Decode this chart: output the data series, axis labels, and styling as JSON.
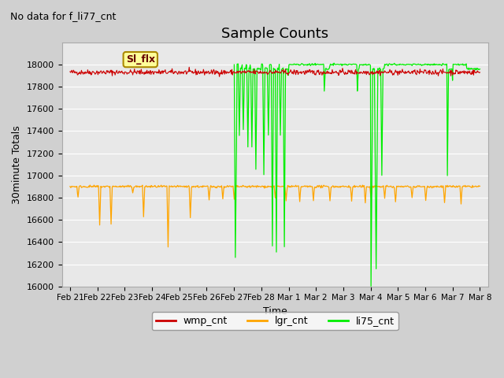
{
  "title": "Sample Counts",
  "ylabel": "30minute Totals",
  "xlabel": "Time",
  "top_left_text": "No data for f_li77_cnt",
  "annotation_box": "Sl_flx",
  "ylim": [
    16000,
    18200
  ],
  "yticks": [
    16000,
    16200,
    16400,
    16600,
    16800,
    17000,
    17200,
    17400,
    17600,
    17800,
    18000
  ],
  "background_color": "#e8e8e8",
  "grid_color": "#ffffff",
  "x_tick_labels": [
    "Feb 21",
    "Feb 22",
    "Feb 23",
    "Feb 24",
    "Feb 25",
    "Feb 26",
    "Feb 27",
    "Feb 28",
    "Mar 1",
    "Mar 2",
    "Mar 3",
    "Mar 4",
    "Mar 5",
    "Mar 6",
    "Mar 7",
    "Mar 8"
  ],
  "wmp_color": "#cc0000",
  "lgr_color": "#ffa500",
  "li75_color": "#00ee00",
  "wmp_base": 17930,
  "lgr_base": 16900,
  "li75_base": 17960,
  "fig_width": 6.4,
  "fig_height": 4.8,
  "dpi": 100
}
